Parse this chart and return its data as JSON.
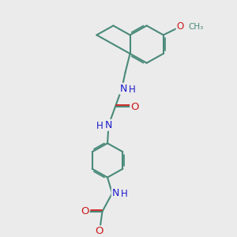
{
  "bg_color": "#ebebeb",
  "bond_color": "#4a8a7a",
  "bond_width": 1.5,
  "atom_colors": {
    "N": "#1a1acc",
    "O": "#cc1a1a",
    "C": "#4a8a7a"
  },
  "font_size": 8.5,
  "fig_size": [
    3.0,
    3.0
  ],
  "dpi": 100,
  "xlim": [
    0,
    10
  ],
  "ylim": [
    0,
    10
  ]
}
